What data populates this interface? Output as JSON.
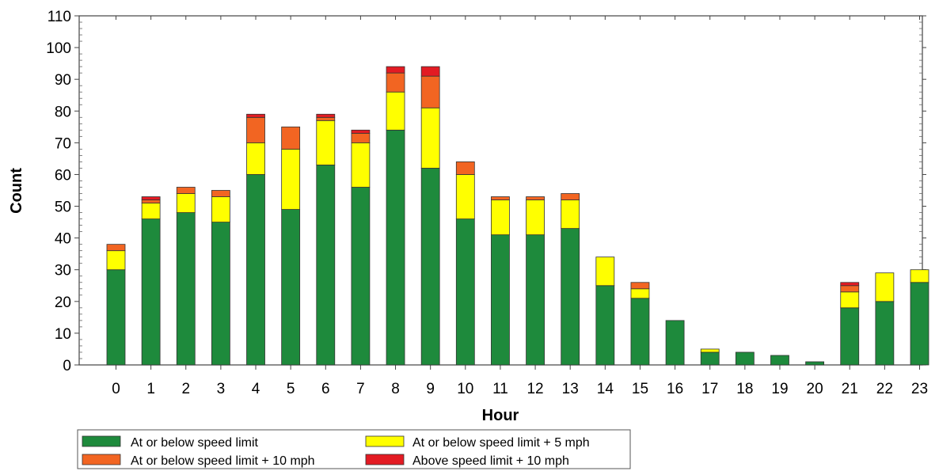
{
  "chart_data": {
    "type": "bar",
    "stacked": true,
    "title": "",
    "xlabel": "Hour",
    "ylabel": "Count",
    "ylim": [
      0,
      110
    ],
    "yticks": [
      0,
      10,
      20,
      30,
      40,
      50,
      60,
      70,
      80,
      90,
      100,
      110
    ],
    "grid": false,
    "legend_position": "bottom-left",
    "categories": [
      "0",
      "1",
      "2",
      "3",
      "4",
      "5",
      "6",
      "7",
      "8",
      "9",
      "10",
      "11",
      "12",
      "13",
      "14",
      "15",
      "16",
      "17",
      "18",
      "19",
      "20",
      "21",
      "22",
      "23"
    ],
    "series": [
      {
        "name": "At or below speed limit",
        "color": "#1e8a3c",
        "values": [
          30,
          46,
          48,
          45,
          60,
          49,
          63,
          56,
          74,
          62,
          46,
          41,
          41,
          43,
          25,
          21,
          14,
          4,
          4,
          3,
          1,
          18,
          20,
          26
        ]
      },
      {
        "name": "At or below speed limit + 5 mph",
        "color": "#ffff00",
        "values": [
          6,
          5,
          6,
          8,
          10,
          19,
          14,
          14,
          12,
          19,
          14,
          11,
          11,
          9,
          9,
          3,
          0,
          1,
          0,
          0,
          0,
          5,
          9,
          4
        ]
      },
      {
        "name": "At or below speed limit + 10 mph",
        "color": "#f26522",
        "values": [
          2,
          1,
          2,
          2,
          8,
          7,
          1,
          3,
          6,
          10,
          4,
          1,
          1,
          2,
          0,
          2,
          0,
          0,
          0,
          0,
          0,
          2,
          0,
          0
        ]
      },
      {
        "name": "Above speed limit + 10 mph",
        "color": "#e31b23",
        "values": [
          0,
          1,
          0,
          0,
          1,
          0,
          1,
          1,
          2,
          3,
          0,
          0,
          0,
          0,
          0,
          0,
          0,
          0,
          0,
          0,
          0,
          1,
          0,
          0
        ]
      }
    ],
    "legend_order": [
      0,
      2,
      1,
      3
    ]
  }
}
